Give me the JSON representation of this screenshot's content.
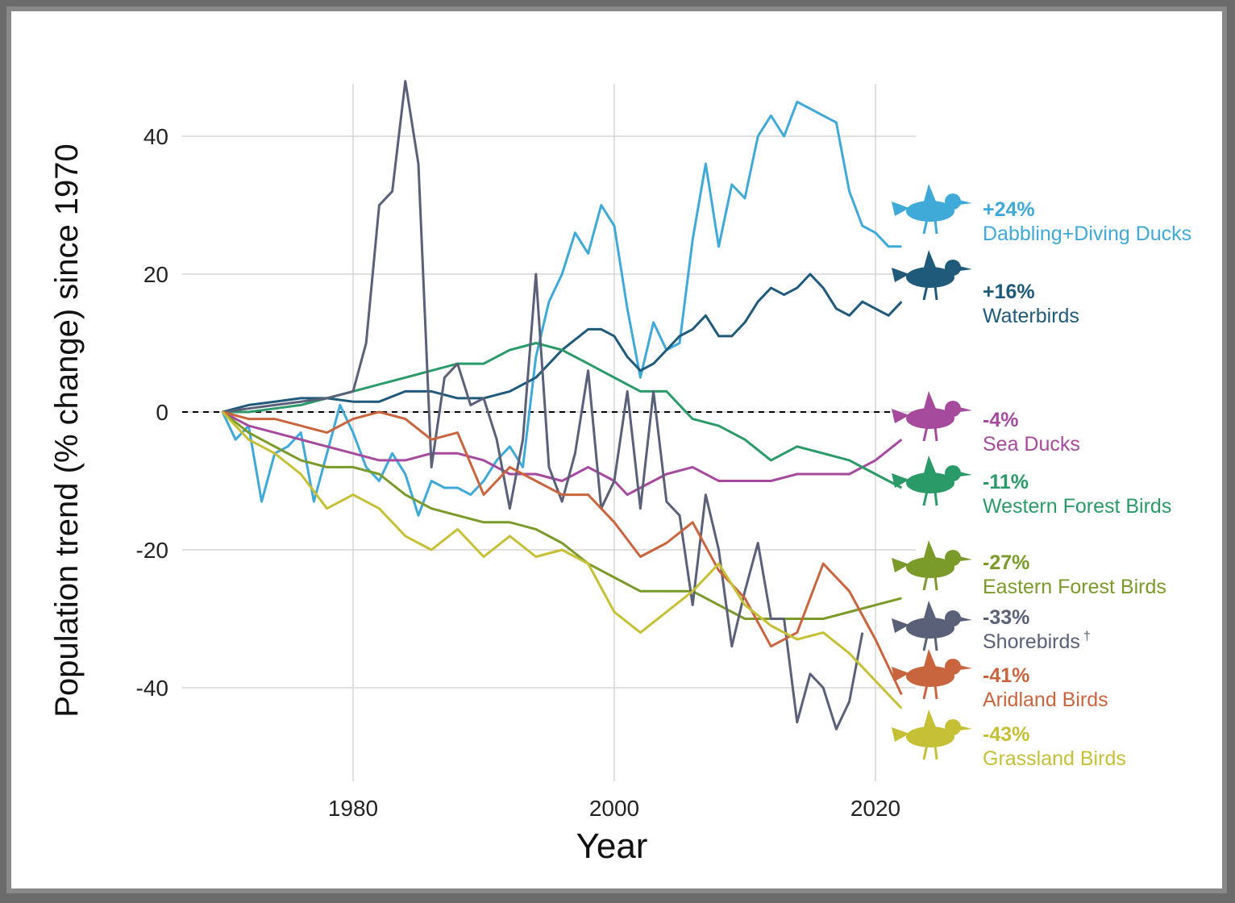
{
  "chart_data": {
    "type": "line",
    "xlabel": "Year",
    "ylabel": "Population trend (% change) since 1970",
    "xlim": [
      1960,
      2030
    ],
    "ylim": [
      -50,
      50
    ],
    "x_ticks": [
      1980,
      2000,
      2020
    ],
    "y_ticks": [
      40,
      20,
      0,
      -20,
      -40
    ],
    "grid": true,
    "legend": "right-side inline labels",
    "series": [
      {
        "name": "Dabbling+Diving Ducks",
        "change_label": "+24%",
        "color": "#3fa9d8",
        "icon": "duck-silhouette-icon",
        "x": [
          1970,
          1971,
          1972,
          1973,
          1974,
          1975,
          1976,
          1977,
          1978,
          1979,
          1980,
          1981,
          1982,
          1983,
          1984,
          1985,
          1986,
          1987,
          1988,
          1989,
          1990,
          1991,
          1992,
          1993,
          1994,
          1995,
          1996,
          1997,
          1998,
          1999,
          2000,
          2001,
          2002,
          2003,
          2004,
          2005,
          2006,
          2007,
          2008,
          2009,
          2010,
          2011,
          2012,
          2013,
          2014,
          2015,
          2016,
          2017,
          2018,
          2019,
          2020,
          2021,
          2022
        ],
        "y": [
          0,
          -4,
          -2,
          -13,
          -6,
          -5,
          -3,
          -13,
          -6,
          1,
          -3,
          -8,
          -10,
          -6,
          -9,
          -15,
          -10,
          -11,
          -11,
          -12,
          -10,
          -7,
          -5,
          -8,
          8,
          16,
          20,
          26,
          23,
          30,
          27,
          15,
          5,
          13,
          9,
          10,
          25,
          36,
          24,
          33,
          31,
          40,
          43,
          40,
          45,
          44,
          43,
          42,
          32,
          27,
          26,
          24,
          24
        ]
      },
      {
        "name": "Waterbirds",
        "change_label": "+16%",
        "color": "#1f5a7a",
        "icon": "waterbird-silhouette-icon",
        "x": [
          1970,
          1971,
          1972,
          1974,
          1976,
          1978,
          1980,
          1982,
          1984,
          1986,
          1988,
          1990,
          1992,
          1994,
          1996,
          1998,
          1999,
          2000,
          2001,
          2002,
          2003,
          2004,
          2005,
          2006,
          2007,
          2008,
          2009,
          2010,
          2011,
          2012,
          2013,
          2014,
          2015,
          2016,
          2017,
          2018,
          2019,
          2020,
          2021,
          2022
        ],
        "y": [
          0,
          0.5,
          1,
          1.5,
          2,
          2,
          1.5,
          1.5,
          3,
          3,
          2,
          2,
          3,
          5,
          9,
          12,
          12,
          11,
          8,
          6,
          7,
          9,
          11,
          12,
          14,
          11,
          11,
          13,
          16,
          18,
          17,
          18,
          20,
          18,
          15,
          14,
          16,
          15,
          14,
          16
        ]
      },
      {
        "name": "Sea Ducks",
        "change_label": "-4%",
        "color": "#a64a9e",
        "icon": "sea-duck-silhouette-icon",
        "x": [
          1970,
          1972,
          1974,
          1976,
          1978,
          1980,
          1982,
          1984,
          1986,
          1988,
          1990,
          1992,
          1994,
          1996,
          1998,
          2000,
          2001,
          2002,
          2004,
          2006,
          2008,
          2010,
          2012,
          2014,
          2016,
          2018,
          2020,
          2022
        ],
        "y": [
          0,
          -2,
          -3,
          -4,
          -5,
          -6,
          -7,
          -7,
          -6,
          -6,
          -7,
          -9,
          -9,
          -10,
          -8,
          -10,
          -12,
          -11,
          -9,
          -8,
          -10,
          -10,
          -10,
          -9,
          -9,
          -9,
          -7,
          -4
        ]
      },
      {
        "name": "Western Forest Birds",
        "change_label": "-11%",
        "color": "#2a9a68",
        "icon": "hummingbird-silhouette-icon",
        "x": [
          1970,
          1972,
          1974,
          1976,
          1978,
          1980,
          1982,
          1984,
          1986,
          1988,
          1990,
          1992,
          1994,
          1996,
          1998,
          2000,
          2002,
          2004,
          2006,
          2008,
          2010,
          2012,
          2014,
          2016,
          2018,
          2020,
          2022
        ],
        "y": [
          0,
          0,
          0.5,
          1,
          2,
          3,
          4,
          5,
          6,
          7,
          7,
          9,
          10,
          9,
          7,
          5,
          3,
          3,
          -1,
          -2,
          -4,
          -7,
          -5,
          -6,
          -7,
          -9,
          -11
        ]
      },
      {
        "name": "Eastern Forest Birds",
        "change_label": "-27%",
        "color": "#7a9a2a",
        "icon": "songbird-silhouette-icon",
        "x": [
          1970,
          1972,
          1974,
          1976,
          1978,
          1980,
          1982,
          1984,
          1986,
          1988,
          1990,
          1992,
          1994,
          1996,
          1998,
          2000,
          2002,
          2004,
          2006,
          2008,
          2010,
          2012,
          2014,
          2016,
          2018,
          2020,
          2022
        ],
        "y": [
          0,
          -3,
          -5,
          -7,
          -8,
          -8,
          -9,
          -12,
          -14,
          -15,
          -16,
          -16,
          -17,
          -19,
          -22,
          -24,
          -26,
          -26,
          -26,
          -28,
          -30,
          -30,
          -30,
          -30,
          -29,
          -28,
          -27
        ]
      },
      {
        "name": "Shorebirds",
        "name_suffix": "†",
        "change_label": "-33%",
        "color": "#5a6078",
        "icon": "shorebird-silhouette-icon",
        "x": [
          1970,
          1972,
          1974,
          1976,
          1978,
          1980,
          1981,
          1982,
          1983,
          1984,
          1985,
          1986,
          1987,
          1988,
          1989,
          1990,
          1991,
          1992,
          1993,
          1994,
          1995,
          1996,
          1997,
          1998,
          1999,
          2000,
          2001,
          2002,
          2003,
          2004,
          2005,
          2006,
          2007,
          2008,
          2009,
          2010,
          2011,
          2012,
          2013,
          2014,
          2015,
          2016,
          2017,
          2018,
          2019
        ],
        "y": [
          0,
          0.5,
          1,
          1.5,
          2,
          3,
          10,
          30,
          32,
          48,
          36,
          -8,
          5,
          7,
          1,
          2,
          -4,
          -14,
          -4,
          20,
          -8,
          -13,
          -6,
          6,
          -14,
          -10,
          3,
          -14,
          3,
          -13,
          -15,
          -28,
          -12,
          -20,
          -34,
          -26,
          -19,
          -30,
          -30,
          -45,
          -38,
          -40,
          -46,
          -42,
          -32
        ]
      },
      {
        "name": "Aridland Birds",
        "change_label": "-41%",
        "color": "#c9653e",
        "icon": "aridland-bird-silhouette-icon",
        "x": [
          1970,
          1972,
          1974,
          1976,
          1978,
          1980,
          1982,
          1984,
          1986,
          1988,
          1990,
          1992,
          1994,
          1996,
          1998,
          2000,
          2002,
          2004,
          2006,
          2008,
          2010,
          2012,
          2014,
          2016,
          2018,
          2020,
          2022
        ],
        "y": [
          0,
          -1,
          -1,
          -2,
          -3,
          -1,
          0,
          -1,
          -4,
          -3,
          -12,
          -8,
          -10,
          -12,
          -12,
          -16,
          -21,
          -19,
          -16,
          -23,
          -27,
          -34,
          -32,
          -22,
          -26,
          -33,
          -41
        ]
      },
      {
        "name": "Grassland Birds",
        "change_label": "-43%",
        "color": "#c6c036",
        "icon": "grassland-bird-silhouette-icon",
        "x": [
          1970,
          1972,
          1974,
          1976,
          1978,
          1980,
          1982,
          1984,
          1986,
          1988,
          1990,
          1992,
          1994,
          1996,
          1998,
          2000,
          2002,
          2004,
          2006,
          2008,
          2010,
          2012,
          2014,
          2016,
          2018,
          2020,
          2022
        ],
        "y": [
          0,
          -4,
          -6,
          -9,
          -14,
          -12,
          -14,
          -18,
          -20,
          -17,
          -21,
          -18,
          -21,
          -20,
          -22,
          -29,
          -32,
          -29,
          -26,
          -22,
          -28,
          -31,
          -33,
          -32,
          -35,
          -39,
          -43
        ]
      }
    ]
  }
}
